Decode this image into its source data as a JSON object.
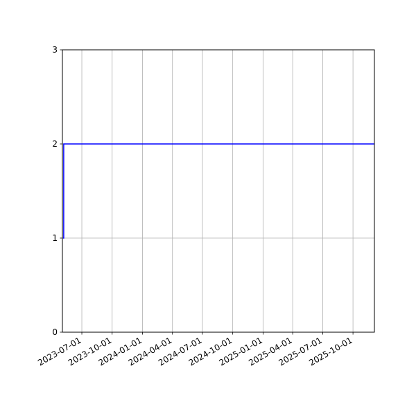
{
  "chart_data": {
    "type": "line",
    "title": "",
    "xlabel": "",
    "ylabel": "",
    "x_is_date": true,
    "xlim": [
      "2023-05-03",
      "2025-12-05"
    ],
    "ylim": [
      0,
      3
    ],
    "grid": true,
    "x_ticks": [
      "2023-07-01",
      "2023-10-01",
      "2024-01-01",
      "2024-04-01",
      "2024-07-01",
      "2024-10-01",
      "2025-01-01",
      "2025-04-01",
      "2025-07-01",
      "2025-10-01"
    ],
    "y_ticks": [
      "0",
      "1",
      "2",
      "3"
    ],
    "series": [
      {
        "color": "#0000ff",
        "drawstyle": "steps-post",
        "points": [
          {
            "x": "2023-05-05",
            "y": 1
          },
          {
            "x": "2023-05-07",
            "y": 2
          },
          {
            "x": "2025-12-05",
            "y": 2
          }
        ]
      }
    ]
  }
}
